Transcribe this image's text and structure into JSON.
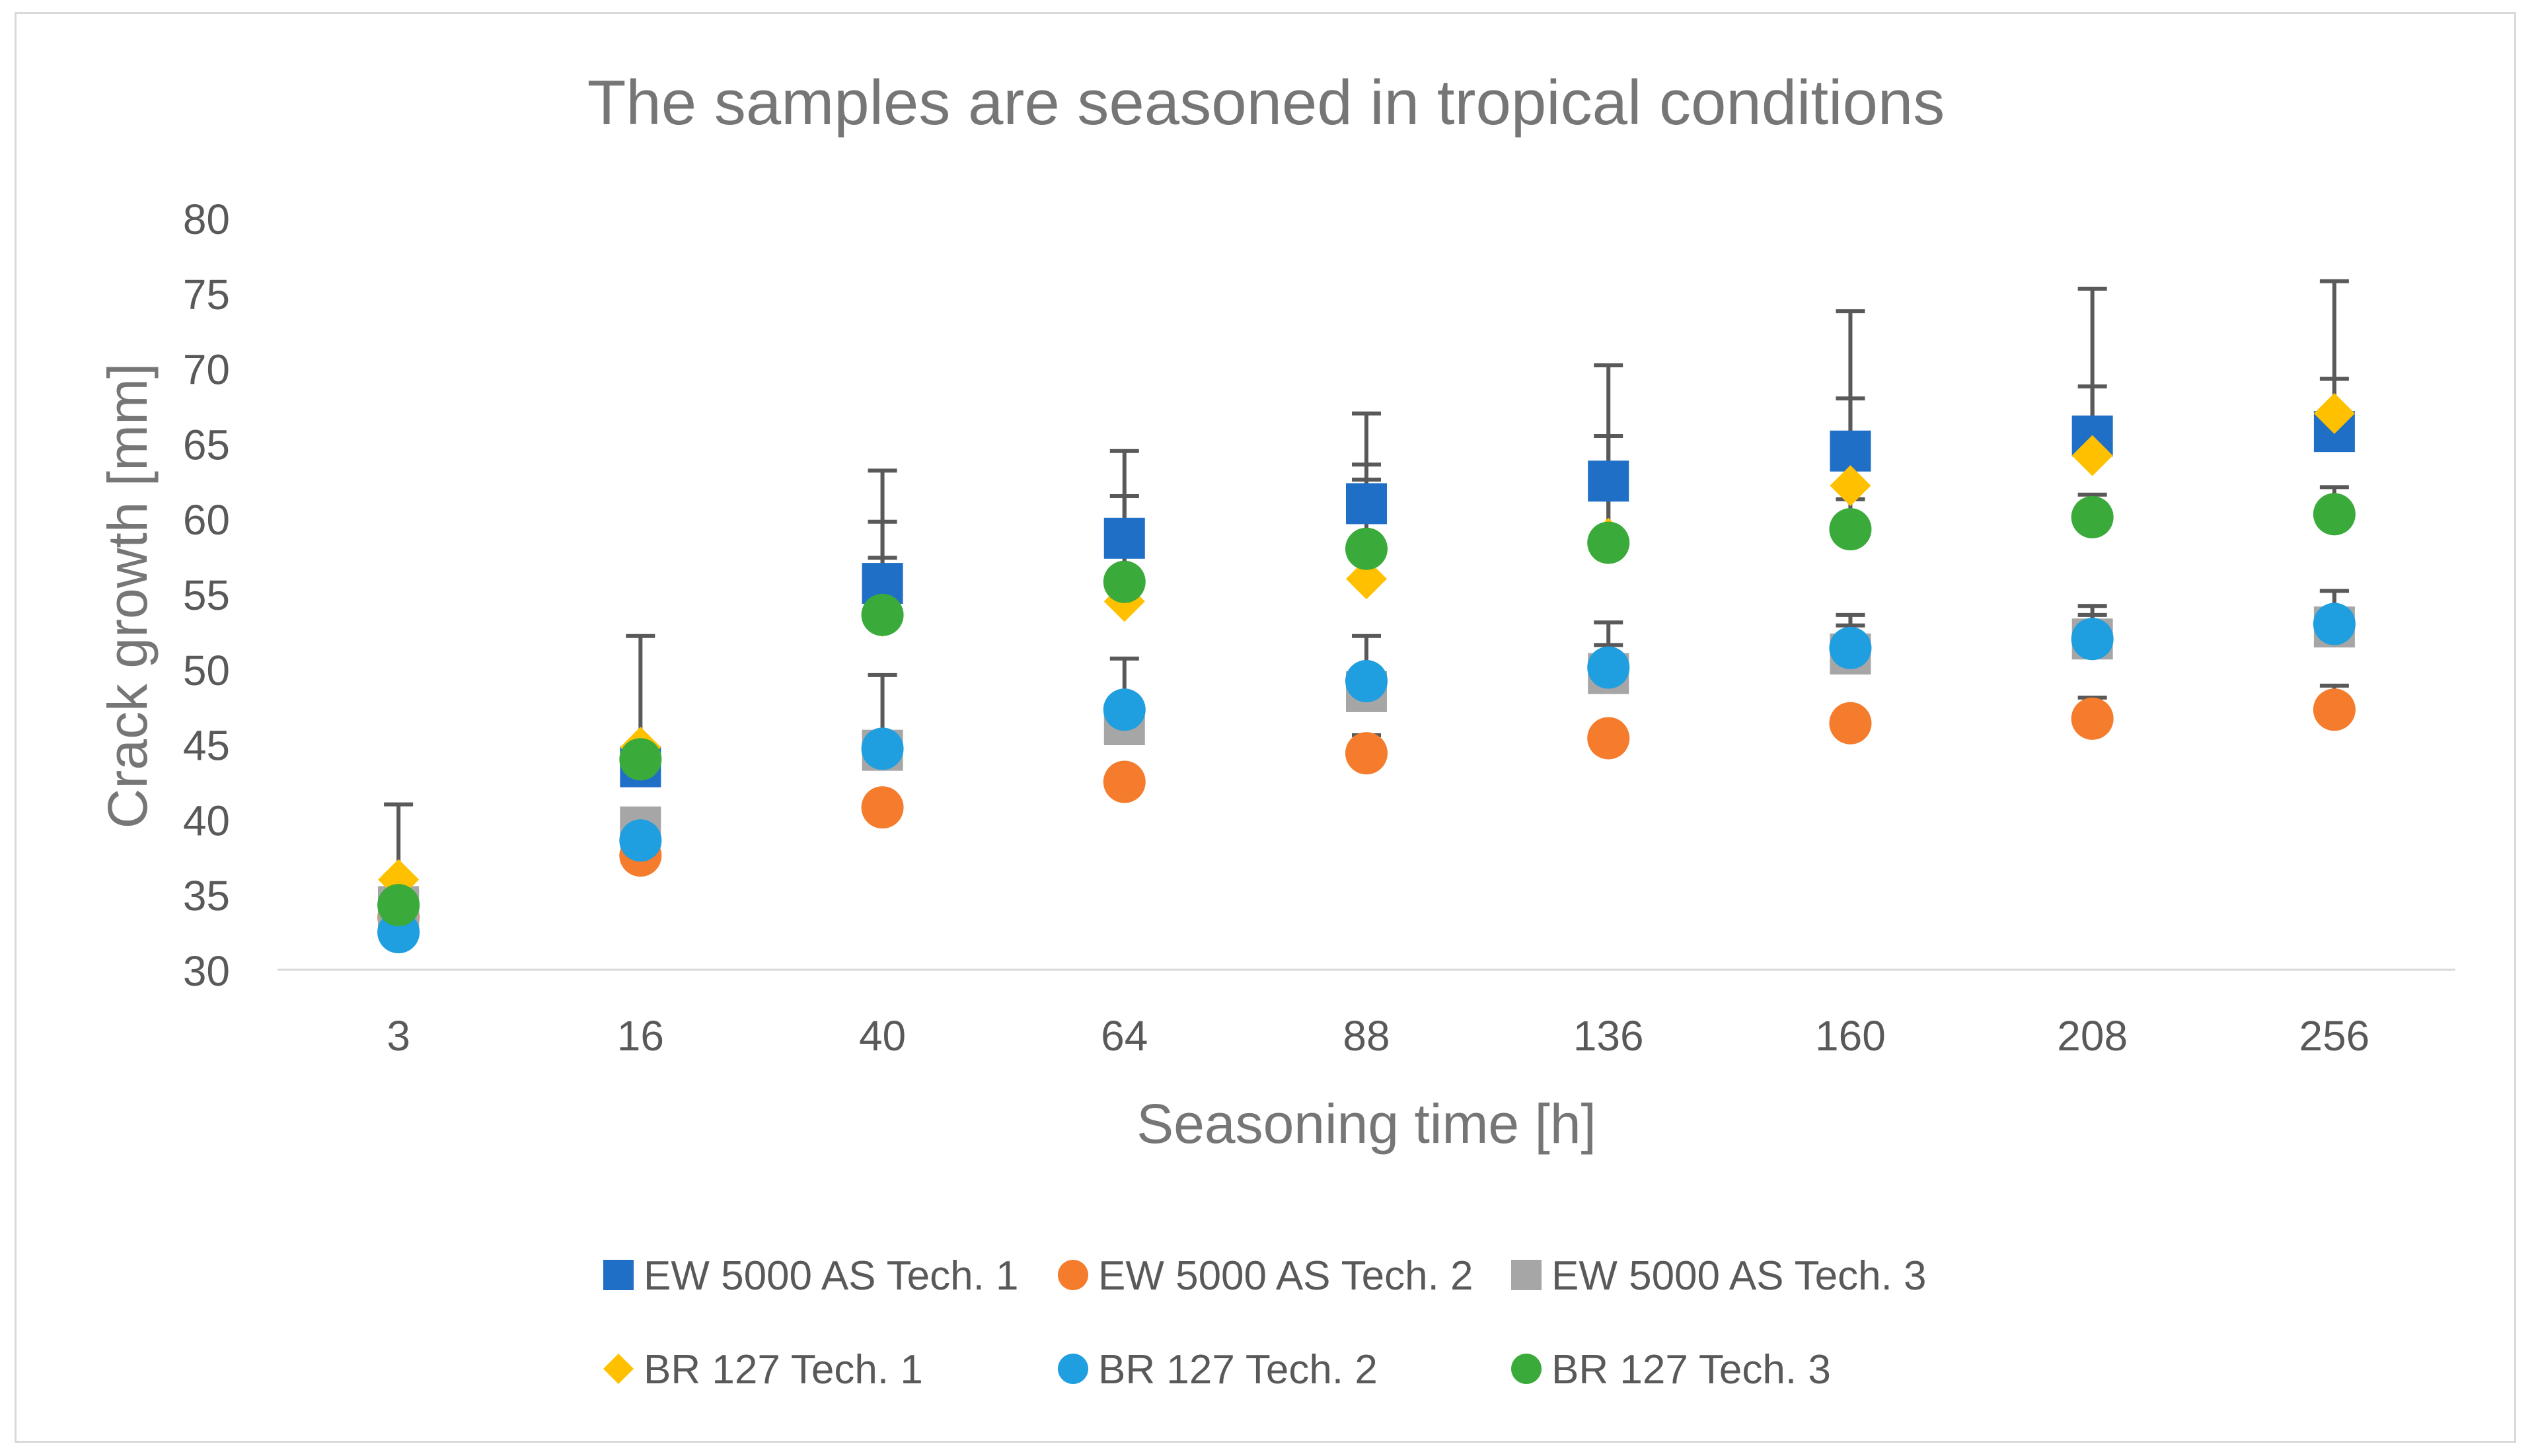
{
  "chart_data": {
    "type": "scatter",
    "title": "The samples are seasoned in tropical conditions",
    "xlabel": "Seasoning time [h]",
    "ylabel": "Crack growth [mm]",
    "categories": [
      "3",
      "16",
      "40",
      "64",
      "88",
      "136",
      "160",
      "208",
      "256"
    ],
    "ylim": [
      30,
      80
    ],
    "yticks": [
      30,
      35,
      40,
      45,
      50,
      55,
      60,
      65,
      70,
      75,
      80
    ],
    "grid": false,
    "legend_position": "bottom",
    "series": [
      {
        "name": "EW 5000 AS Tech. 1",
        "marker": "square",
        "color": "#1f6fc6",
        "values": [
          34.0,
          43.5,
          55.7,
          58.7,
          61.0,
          62.5,
          64.5,
          65.5,
          65.8
        ],
        "error": [
          7.0,
          8.7,
          7.5,
          5.8,
          6.0,
          7.7,
          9.3,
          9.8,
          10.0
        ]
      },
      {
        "name": "EW 5000 AS Tech. 2",
        "marker": "circle",
        "color": "#f47c2c",
        "values": [
          33.5,
          37.6,
          40.8,
          42.5,
          44.4,
          45.4,
          46.4,
          46.7,
          47.3
        ],
        "error": [
          0.0,
          0.0,
          0.0,
          0.0,
          1.2,
          0.6,
          0.0,
          1.4,
          1.6
        ]
      },
      {
        "name": "EW 5000 AS Tech. 3",
        "marker": "square",
        "color": "#a6a6a6",
        "values": [
          34.2,
          39.5,
          44.6,
          46.3,
          48.5,
          49.7,
          51.0,
          52.0,
          52.8
        ],
        "error": [
          0.0,
          0.0,
          5.0,
          4.4,
          3.7,
          3.4,
          2.6,
          2.2,
          2.4
        ]
      },
      {
        "name": "BR 127 Tech. 1",
        "marker": "diamond",
        "color": "#ffc000",
        "values": [
          36.0,
          44.8,
          53.5,
          54.5,
          56.0,
          58.7,
          62.2,
          64.2,
          67.0
        ],
        "error": [
          0.0,
          0.0,
          6.3,
          7.0,
          7.6,
          6.8,
          5.8,
          4.6,
          2.3
        ]
      },
      {
        "name": "BR 127 Tech. 2",
        "marker": "circle",
        "color": "#1f9ee0",
        "values": [
          32.5,
          38.6,
          44.7,
          47.3,
          49.2,
          50.1,
          51.4,
          52.0,
          53.0
        ],
        "error": [
          0.0,
          0.0,
          0.0,
          0.0,
          0.0,
          1.5,
          1.5,
          1.6,
          2.2
        ]
      },
      {
        "name": "BR 127 Tech. 3",
        "marker": "circle",
        "color": "#3aab3a",
        "values": [
          34.3,
          44.0,
          53.6,
          55.8,
          58.0,
          58.4,
          59.3,
          60.1,
          60.3
        ],
        "error": [
          0.0,
          0.0,
          3.8,
          3.8,
          4.6,
          3.0,
          2.0,
          1.5,
          1.8
        ]
      }
    ]
  }
}
